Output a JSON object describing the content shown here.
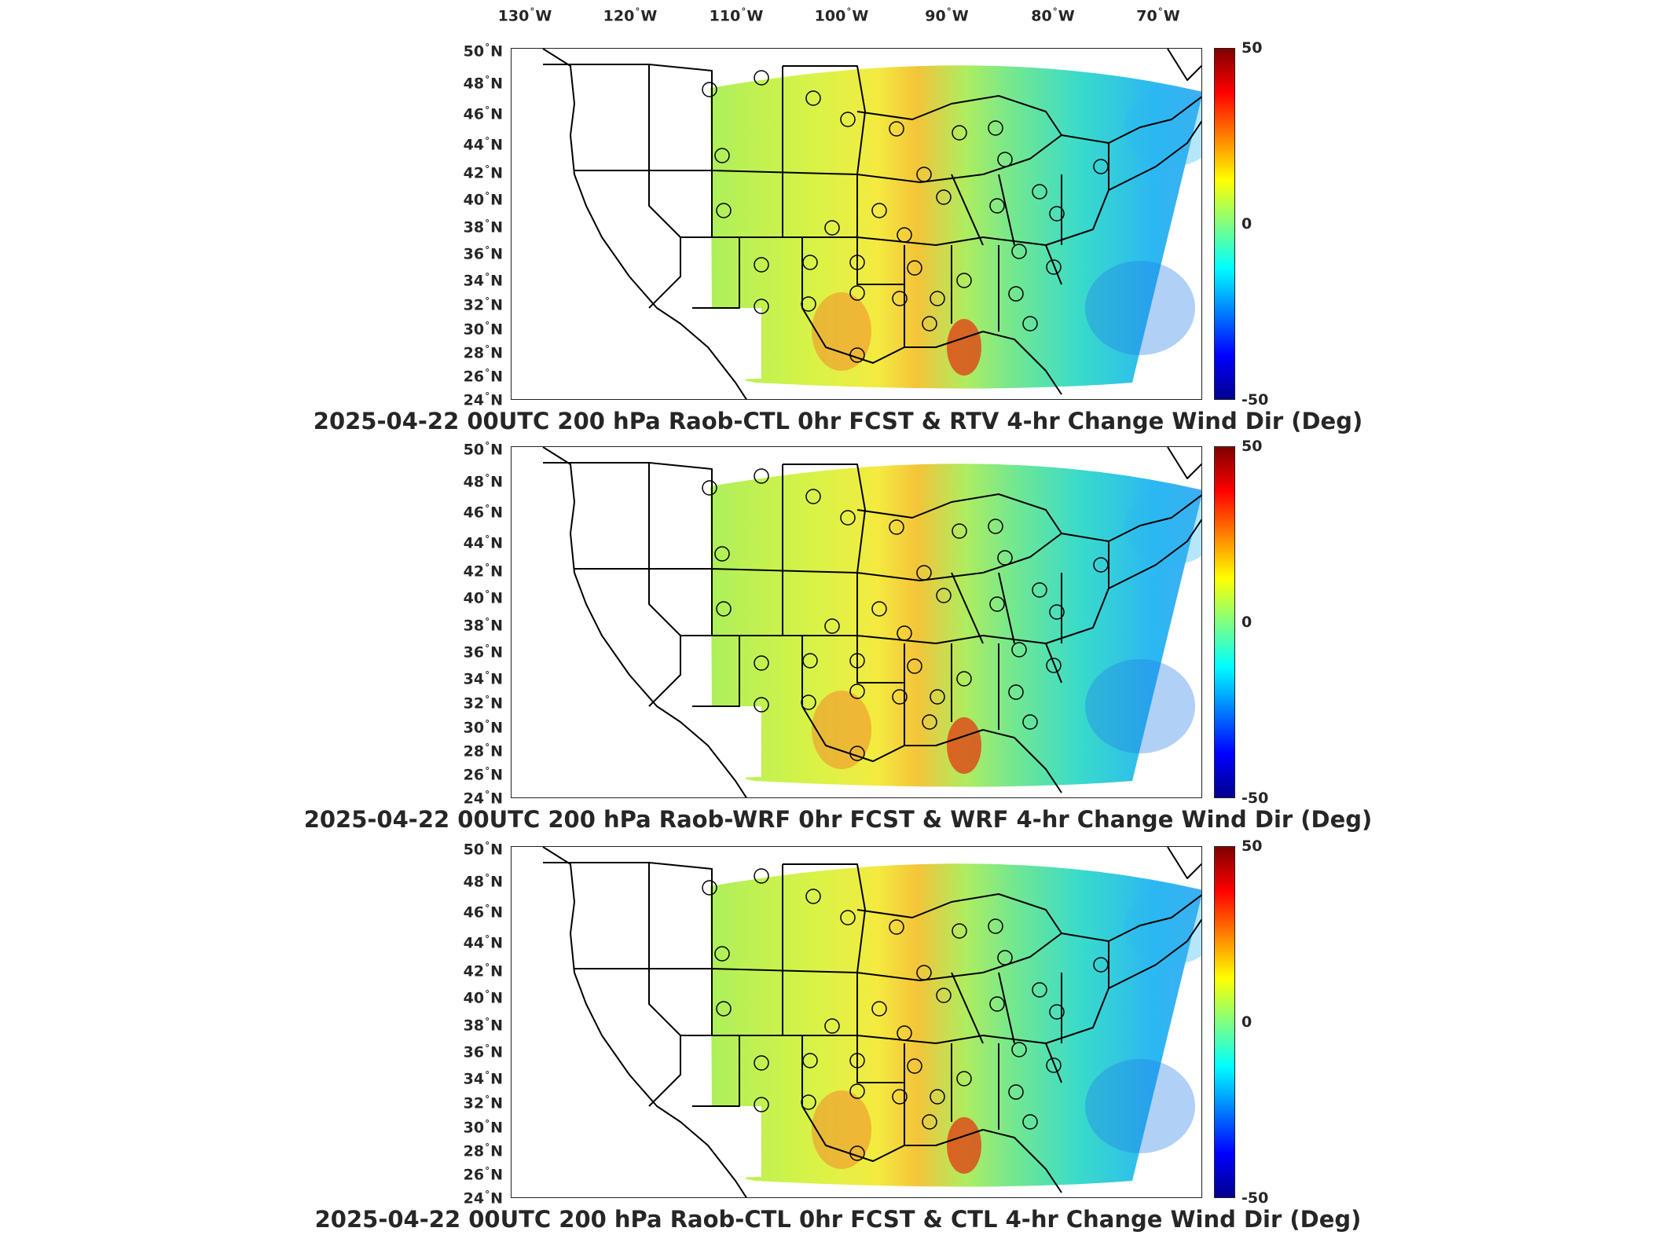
{
  "longitude_labels": [
    "130",
    "120",
    "110",
    "100",
    "90",
    "80",
    "70"
  ],
  "longitude_suffix": "W",
  "latitude_labels": [
    "50",
    "48",
    "46",
    "44",
    "42",
    "40",
    "38",
    "36",
    "34",
    "32",
    "30",
    "28",
    "26",
    "24"
  ],
  "latitude_suffix": "N",
  "degree_symbol": "°",
  "colorbar": {
    "max_label": "50",
    "mid_label": "0",
    "min_label": "-50",
    "colormap": [
      "#7f0000",
      "#ff0000",
      "#ff8000",
      "#ffff00",
      "#80ff80",
      "#00ffff",
      "#0080ff",
      "#0000ff",
      "#00008f"
    ]
  },
  "panels": [
    {
      "title": "2025-04-22 00UTC 200 hPa Raob-CTL 0hr FCST & RTV 4-hr Change Wind Dir (Deg)"
    },
    {
      "title": "2025-04-22 00UTC 200 hPa Raob-WRF 0hr FCST & WRF 4-hr Change Wind Dir (Deg)"
    },
    {
      "title": "2025-04-22 00UTC 200 hPa Raob-CTL 0hr FCST & CTL 4-hr Change Wind Dir (Deg)"
    }
  ]
}
